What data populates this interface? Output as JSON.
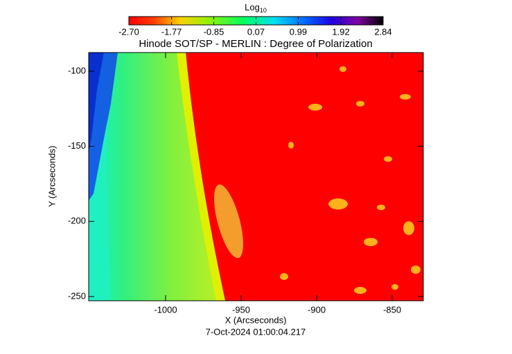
{
  "chart_data": {
    "type": "image",
    "title": "Hinode SOT/SP - MERLIN : Degree of Polarization",
    "xlabel": "X (Arcseconds)",
    "ylabel": "Y (Arcseconds)",
    "footer": "7-Oct-2024 01:00:04.217",
    "xlim": [
      -1050.9,
      -829.4
    ],
    "xticks": [
      -1000,
      -950,
      -900,
      -850
    ],
    "ylim": [
      -252.8,
      -87.6
    ],
    "yticks": [
      -250,
      -200,
      -150,
      -100
    ],
    "colorbar": {
      "label": "Log",
      "label_sub": "10",
      "lim": [
        -2.7,
        2.84
      ],
      "ticks": [
        {
          "value": -2.7,
          "label": "-2.70"
        },
        {
          "value": -1.77,
          "label": "-1.77"
        },
        {
          "value": -0.85,
          "label": "-0.85"
        },
        {
          "value": 0.07,
          "label": "0.07"
        },
        {
          "value": 0.99,
          "label": "0.99"
        },
        {
          "value": 1.92,
          "label": "1.92"
        },
        {
          "value": 2.84,
          "label": "2.84"
        }
      ]
    }
  }
}
